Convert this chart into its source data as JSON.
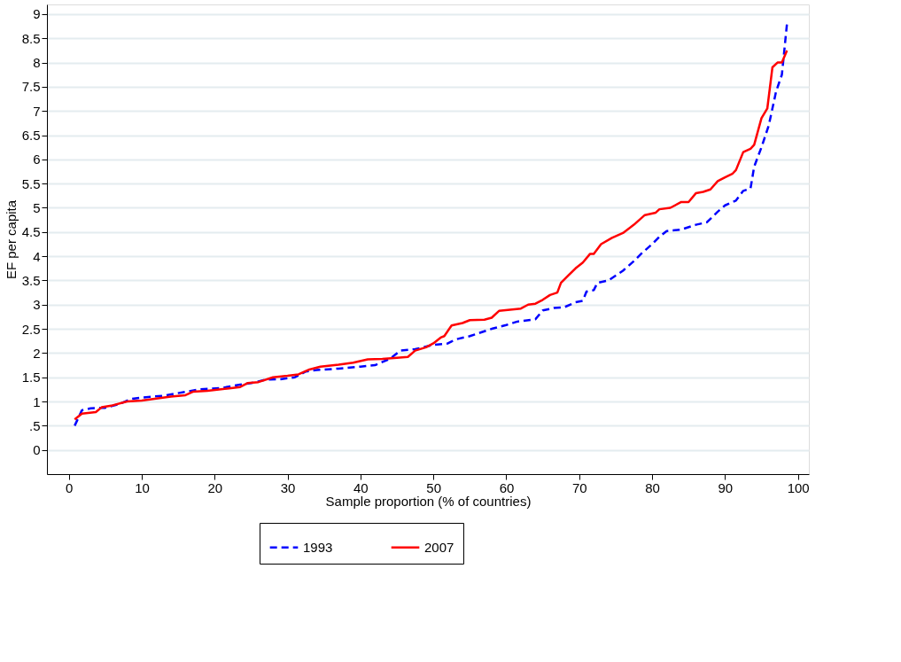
{
  "chart_data": {
    "type": "line",
    "xlabel": "Sample proportion (% of countries)",
    "ylabel": "EF per capita",
    "xlim": [
      -3,
      101.5
    ],
    "ylim": [
      -0.5,
      9.2
    ],
    "xticks": [
      0,
      10,
      20,
      30,
      40,
      50,
      60,
      70,
      80,
      90,
      100
    ],
    "yticks": [
      0,
      {
        "value": 0.5,
        "label": ".5"
      },
      1,
      1.5,
      2,
      2.5,
      3,
      3.5,
      4,
      4.5,
      5,
      5.5,
      6,
      6.5,
      7,
      7.5,
      8,
      8.5,
      9
    ],
    "grid": "y",
    "legend": "bottom",
    "marker": "none",
    "series": [
      {
        "name": "1993",
        "color": "#0000ff",
        "line_style": "dashed",
        "x": [
          0.8,
          1.8,
          3,
          5,
          7,
          8.5,
          10,
          13,
          16,
          18,
          21,
          23.5,
          25,
          27,
          29,
          31,
          32.5,
          34,
          37,
          40,
          42,
          44,
          45.5,
          47.5,
          50,
          52,
          53,
          55,
          58,
          60,
          61.5,
          64,
          65,
          66.5,
          68,
          69.5,
          70.5,
          71,
          72,
          72.5,
          74,
          75,
          76,
          77.5,
          78.5,
          80,
          81,
          82,
          84,
          86,
          87.5,
          89,
          90,
          91.5,
          92.5,
          93.5,
          94,
          95,
          96,
          97,
          97.8,
          98.5
        ],
        "values": [
          0.5,
          0.82,
          0.86,
          0.87,
          0.95,
          1.05,
          1.08,
          1.12,
          1.2,
          1.25,
          1.28,
          1.35,
          1.38,
          1.45,
          1.46,
          1.5,
          1.62,
          1.65,
          1.68,
          1.72,
          1.75,
          1.88,
          2.05,
          2.08,
          2.17,
          2.2,
          2.28,
          2.35,
          2.5,
          2.58,
          2.65,
          2.7,
          2.88,
          2.93,
          2.95,
          3.05,
          3.08,
          3.27,
          3.3,
          3.45,
          3.5,
          3.6,
          3.7,
          3.9,
          4.05,
          4.25,
          4.4,
          4.52,
          4.55,
          4.65,
          4.7,
          4.92,
          5.05,
          5.15,
          5.35,
          5.4,
          5.85,
          6.25,
          6.7,
          7.4,
          7.75,
          8.8
        ]
      },
      {
        "name": "2007",
        "color": "#ff0000",
        "line_style": "solid",
        "x": [
          0.8,
          1.8,
          3.7,
          4.5,
          6,
          8,
          10,
          12,
          14,
          16,
          17,
          19,
          22,
          23.5,
          24.5,
          26,
          28,
          30,
          31.5,
          33,
          34.5,
          37,
          39,
          41,
          43,
          45,
          46.5,
          47.5,
          49,
          50,
          51,
          51.5,
          52.5,
          54,
          55,
          57,
          58,
          59,
          62,
          63,
          64,
          65,
          66,
          67,
          67.5,
          68.5,
          69.5,
          70.5,
          71.5,
          72,
          73,
          74.5,
          76,
          77.5,
          79,
          80.5,
          81,
          82.5,
          84,
          85,
          86,
          87,
          88,
          89,
          90,
          91,
          91.5,
          92.5,
          93.5,
          94,
          95,
          95.8,
          96.5,
          97.2,
          97.8,
          98.5
        ],
        "values": [
          0.63,
          0.75,
          0.78,
          0.88,
          0.92,
          1.0,
          1.02,
          1.06,
          1.1,
          1.13,
          1.2,
          1.22,
          1.27,
          1.3,
          1.38,
          1.4,
          1.5,
          1.53,
          1.56,
          1.66,
          1.72,
          1.76,
          1.8,
          1.87,
          1.88,
          1.9,
          1.92,
          2.05,
          2.12,
          2.2,
          2.32,
          2.35,
          2.57,
          2.62,
          2.68,
          2.69,
          2.73,
          2.87,
          2.92,
          3.0,
          3.02,
          3.1,
          3.2,
          3.25,
          3.45,
          3.6,
          3.75,
          3.87,
          4.05,
          4.05,
          4.25,
          4.38,
          4.48,
          4.65,
          4.85,
          4.9,
          4.97,
          5.0,
          5.12,
          5.12,
          5.3,
          5.33,
          5.38,
          5.55,
          5.63,
          5.7,
          5.78,
          6.15,
          6.22,
          6.3,
          6.85,
          7.05,
          7.9,
          8.0,
          8.0,
          8.25
        ]
      }
    ]
  }
}
